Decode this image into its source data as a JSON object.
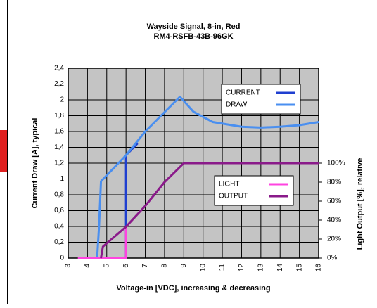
{
  "chart_data": {
    "type": "line",
    "title": "Wayside Signal, 8-in, Red",
    "subtitle": "RM4-RSFB-43B-96GK",
    "x_label": "Voltage-in [VDC], increasing & decreasing",
    "y_label": "Current Draw [A], typical",
    "y2_label": "Light Output [%], relative",
    "xlim": [
      3,
      16
    ],
    "xticks": [
      3,
      4,
      5,
      6,
      7,
      8,
      9,
      10,
      11,
      12,
      13,
      14,
      15,
      16
    ],
    "ylim": [
      0,
      2.4
    ],
    "yticks": [
      0,
      {
        "value": 0.2,
        "label": "0,2"
      },
      {
        "value": 0.4,
        "label": "0,4"
      },
      {
        "value": 0.6,
        "label": "0,6"
      },
      {
        "value": 0.8,
        "label": "0,8"
      },
      1,
      {
        "value": 1.2,
        "label": "1,2"
      },
      {
        "value": 1.4,
        "label": "1,4"
      },
      {
        "value": 1.6,
        "label": "1,6"
      },
      {
        "value": 1.8,
        "label": "1,8"
      },
      2,
      {
        "value": 2.2,
        "label": "2,2"
      },
      {
        "value": 2.4,
        "label": "2,4"
      }
    ],
    "y2lim": [
      0,
      200
    ],
    "y2ticks": [
      {
        "value": 0,
        "label": "0%"
      },
      {
        "value": 20,
        "label": "20%"
      },
      {
        "value": 40,
        "label": "40%"
      },
      {
        "value": 60,
        "label": "60%"
      },
      {
        "value": 80,
        "label": "80%"
      },
      {
        "value": 100,
        "label": "100%"
      }
    ],
    "grid": true,
    "series": [
      {
        "name": "CURRENT",
        "color": "#1f3fd0",
        "x": [
          6,
          6,
          6.6
        ],
        "values": [
          0,
          1.3,
          1.45
        ]
      },
      {
        "name": "DRAW",
        "color": "#4a8ff0",
        "x": [
          4.5,
          4.6,
          4.7,
          6,
          7,
          8.8,
          9.5,
          10.5,
          12,
          13,
          14,
          15,
          16
        ],
        "values": [
          0,
          0.4,
          0.97,
          1.3,
          1.6,
          2.04,
          1.85,
          1.72,
          1.66,
          1.65,
          1.66,
          1.68,
          1.72
        ]
      },
      {
        "name": "LIGHT",
        "color": "#ff44e0",
        "axis": "y2",
        "x": [
          3.5,
          6,
          6
        ],
        "values": [
          0,
          0,
          33
        ]
      },
      {
        "name": "OUTPUT",
        "color": "#8a1a8a",
        "axis": "y2",
        "x": [
          4.7,
          4.8,
          6,
          7,
          8,
          8.9,
          9,
          16
        ],
        "values": [
          0,
          12,
          33,
          55,
          80,
          98,
          100,
          100
        ]
      }
    ]
  }
}
